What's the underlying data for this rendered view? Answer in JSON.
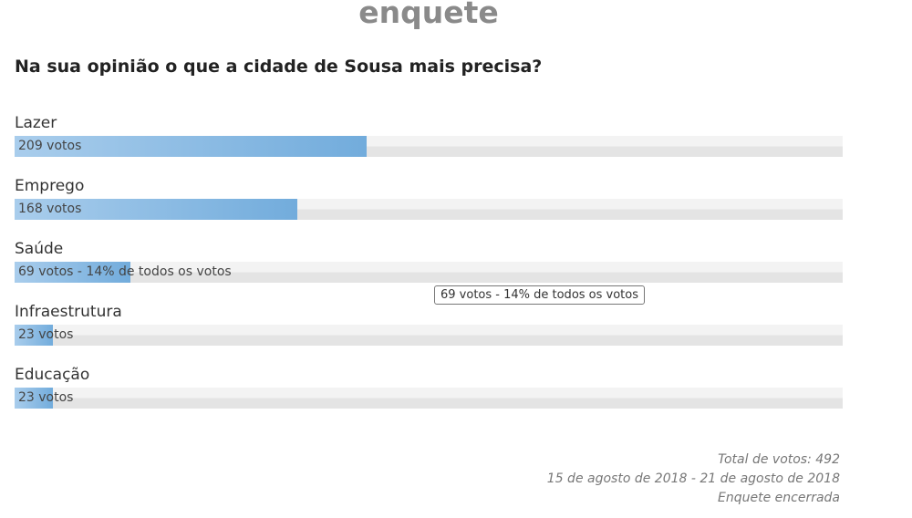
{
  "header": {
    "title": "enquete"
  },
  "poll": {
    "question": "Na sua opinião o que a cidade de Sousa mais precisa?",
    "options": [
      {
        "label": "Lazer",
        "votes": 209,
        "vote_label": "209 votos"
      },
      {
        "label": "Emprego",
        "votes": 168,
        "vote_label": "168 votos"
      },
      {
        "label": "Saúde",
        "votes": 69,
        "vote_label": "69 votos - 14% de todos os votos"
      },
      {
        "label": "Infraestrutura",
        "votes": 23,
        "vote_label": "23 votos"
      },
      {
        "label": "Educação",
        "votes": 23,
        "vote_label": "23 votos"
      }
    ],
    "tooltip": "69 votos - 14% de todos os votos"
  },
  "footer": {
    "total": "Total de votos: 492",
    "period": "15 de agosto de 2018 - 21 de agosto de 2018",
    "status": "Enquete encerrada"
  }
}
